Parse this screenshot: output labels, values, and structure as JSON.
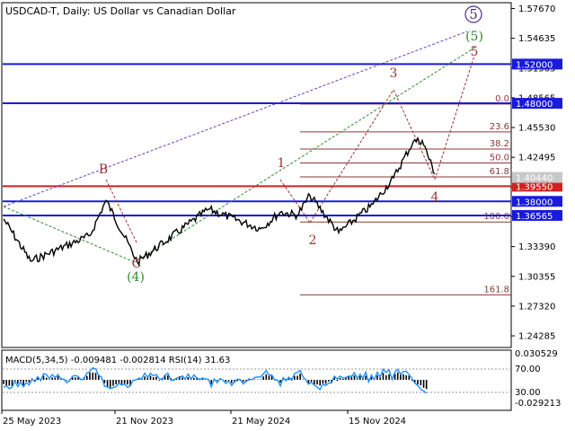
{
  "header": {
    "title": "USDCAD-T, Daily:  US Dollar vs Canadian Dollar"
  },
  "colors": {
    "price_line": "#000000",
    "blue_level": "#1a1adb",
    "red_level": "#d42020",
    "fib": "#8b3a3a",
    "wave_label": "#9a3232",
    "green_wave": "#2f8a2f",
    "purple_wave": "#4b2a88",
    "macd_hist": "#000000",
    "rsi_line": "#1e90ff"
  },
  "chart_data": [
    {
      "type": "line",
      "title": "USDCAD-T, Daily:  US Dollar vs Canadian Dollar",
      "ylim": [
        1.2319,
        1.5817
      ],
      "y_ticks": [
        "1.57670",
        "1.54635",
        "1.51565",
        "1.48565",
        "1.45530",
        "1.42495",
        "1.39460",
        "1.36430",
        "1.33390",
        "1.30355",
        "1.27320",
        "1.24285"
      ],
      "x_ticks": [
        "25 May 2023",
        "21 Nov 2023",
        "21 May 2024",
        "15 Nov 2024"
      ],
      "series": [
        {
          "x": [
            "25 May 2023",
            "Jul 2023",
            "Sep 2023",
            "Oct 2023",
            "21 Nov 2023",
            "Jan 2024",
            "Mar 2024",
            "21 May 2024",
            "Jul 2024",
            "Aug 2024",
            "Oct 2024",
            "15 Nov 2024",
            "Dec 2024",
            "Jan 2025",
            "Feb 2025",
            "Mar 2025"
          ],
          "y": [
            1.362,
            1.319,
            1.345,
            1.381,
            1.318,
            1.372,
            1.352,
            1.369,
            1.366,
            1.386,
            1.348,
            1.377,
            1.404,
            1.441,
            1.442,
            1.408
          ]
        }
      ],
      "levels": [
        {
          "label": "1.52000",
          "value": 1.52,
          "color": "#1a1adb"
        },
        {
          "label": "1.48000",
          "value": 1.48,
          "color": "#1a1adb"
        },
        {
          "label": "1.39550",
          "value": 1.3955,
          "color": "#d42020"
        },
        {
          "label": "1.38000",
          "value": 1.38,
          "color": "#1a1adb"
        },
        {
          "label": "1.36565",
          "value": 1.36565,
          "color": "#1a1adb"
        }
      ],
      "current_price": {
        "label": "1.40440",
        "value": 1.4044
      },
      "fibonacci": [
        {
          "label": "0.0",
          "value": 1.4793
        },
        {
          "label": "23.6",
          "value": 1.4509
        },
        {
          "label": "38.2",
          "value": 1.4333
        },
        {
          "label": "50.0",
          "value": 1.4192
        },
        {
          "label": "61.8",
          "value": 1.405
        },
        {
          "label": "100.0",
          "value": 1.359
        },
        {
          "label": "161.8",
          "value": 1.2847
        }
      ],
      "wave_labels": {
        "w1": "1",
        "w2": "2",
        "w3": "3",
        "w4": "4",
        "w5": "5",
        "B": "B",
        "C": "C",
        "g4": "(4)",
        "g5": "(5)",
        "p5": "5"
      }
    },
    {
      "type": "line",
      "title": "MACD(5,34,5) -0.009481 -0.002814 RSI(14) 31.63",
      "macd": {
        "main": -0.009481,
        "signal": -0.002814
      },
      "rsi": 31.63,
      "y_ticks": [
        "0.030529",
        "-0.029213"
      ],
      "rsi_levels": [
        "70.00",
        "30.00"
      ]
    }
  ]
}
